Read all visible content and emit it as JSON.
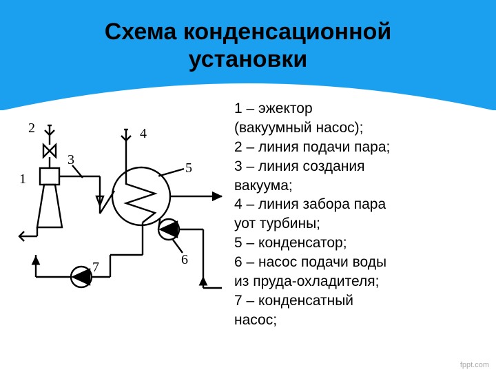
{
  "header": {
    "title_line1": "Схема конденсационной",
    "title_line2": "установки",
    "bg_color": "#1ba0f0"
  },
  "legend": {
    "items": [
      "1 – эжектор",
      "(вакуумный насос);",
      "2 – линия подачи пара;",
      "3 – линия создания",
      "вакуума;",
      "4 – линия забора пара",
      "уот турбины;",
      "5 – конденсатор;",
      "6 – насос подачи воды",
      "из пруда-охладителя;",
      "7 – конденсатный",
      "насос;"
    ]
  },
  "diagram": {
    "labels": {
      "n1": "1",
      "n2": "2",
      "n3": "3",
      "n4": "4",
      "n5": "5",
      "n6": "6",
      "n7": "7"
    },
    "stroke": "#000000",
    "stroke_width": 2.4,
    "label_fontsize": 20,
    "condenser_radius": 42,
    "pump_radius": 15
  },
  "footer": {
    "text": "fppt.com"
  }
}
